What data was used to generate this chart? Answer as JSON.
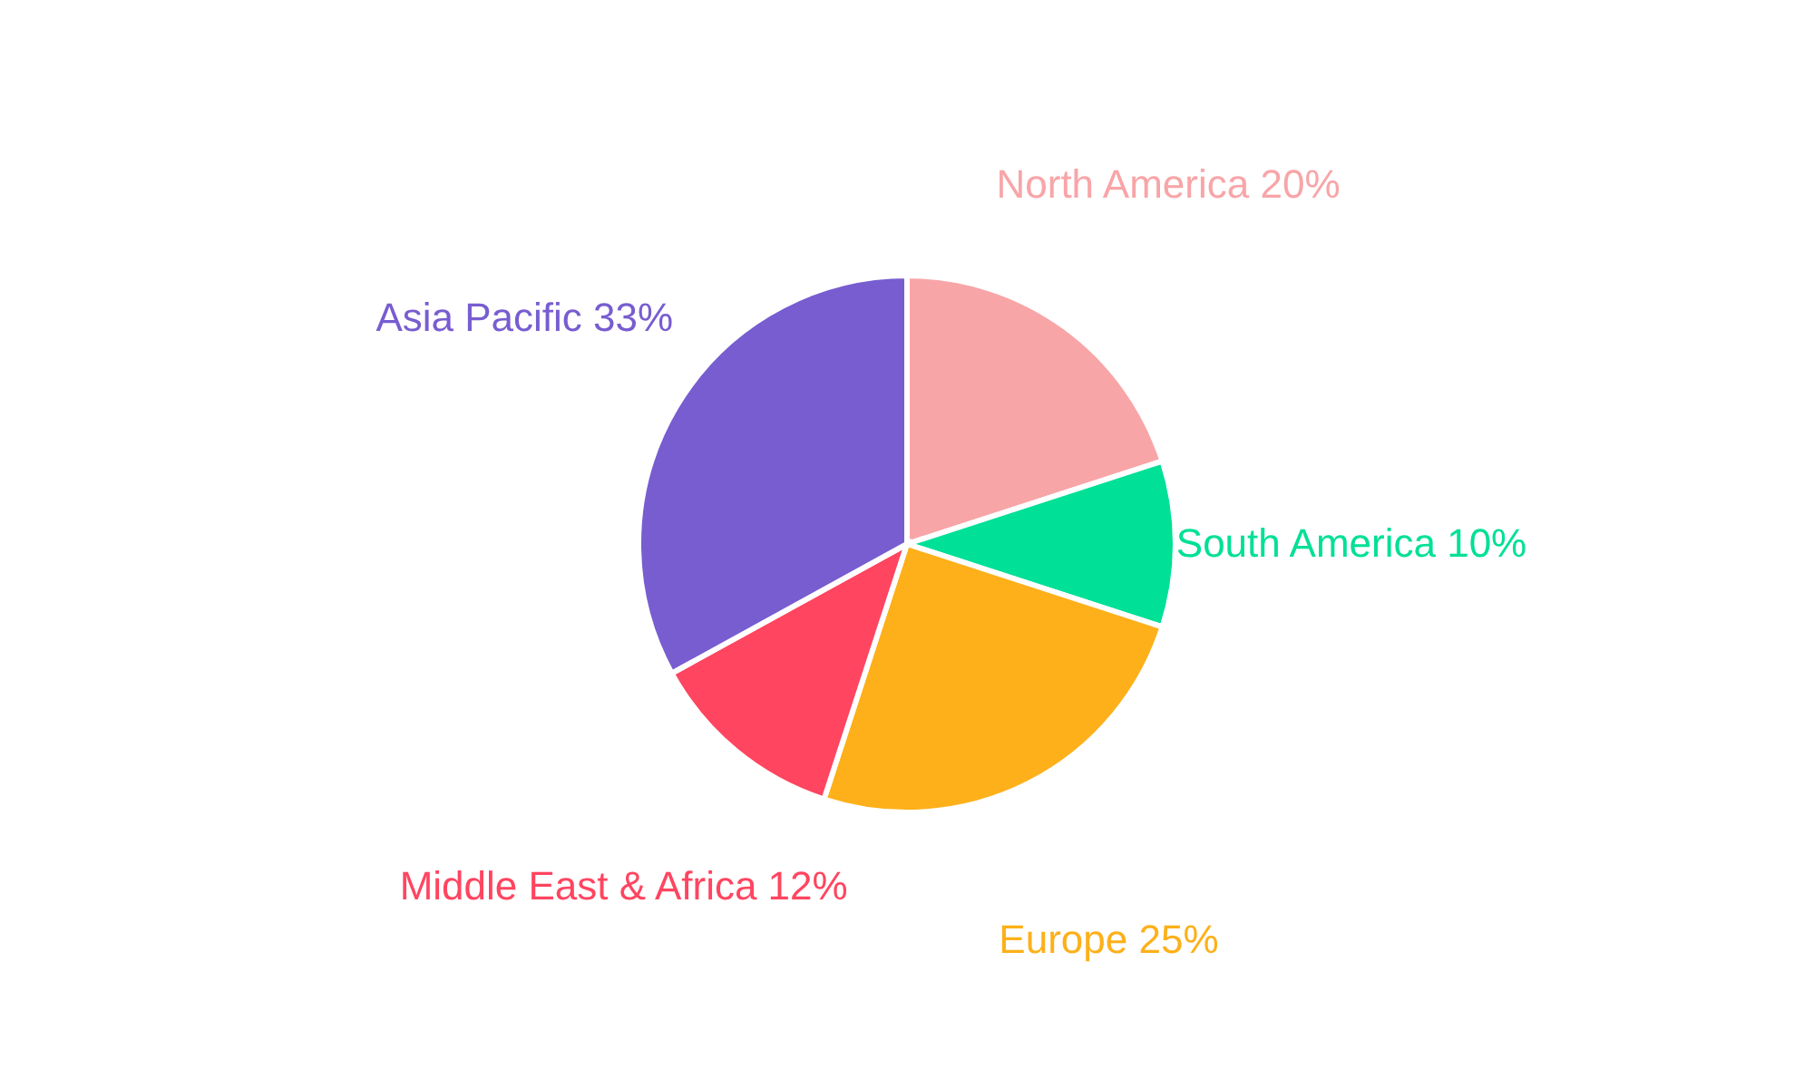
{
  "chart_data": {
    "type": "pie",
    "categories": [
      "North America",
      "South America",
      "Europe",
      "Middle East & Africa",
      "Asia Pacific"
    ],
    "values": [
      20,
      10,
      25,
      12,
      33
    ],
    "value_labels": [
      "20%",
      "10%",
      "25%",
      "12%",
      "33%"
    ],
    "colors": [
      "#f8a5a8",
      "#00e096",
      "#fdb019",
      "#ff4560",
      "#775dd0"
    ]
  }
}
